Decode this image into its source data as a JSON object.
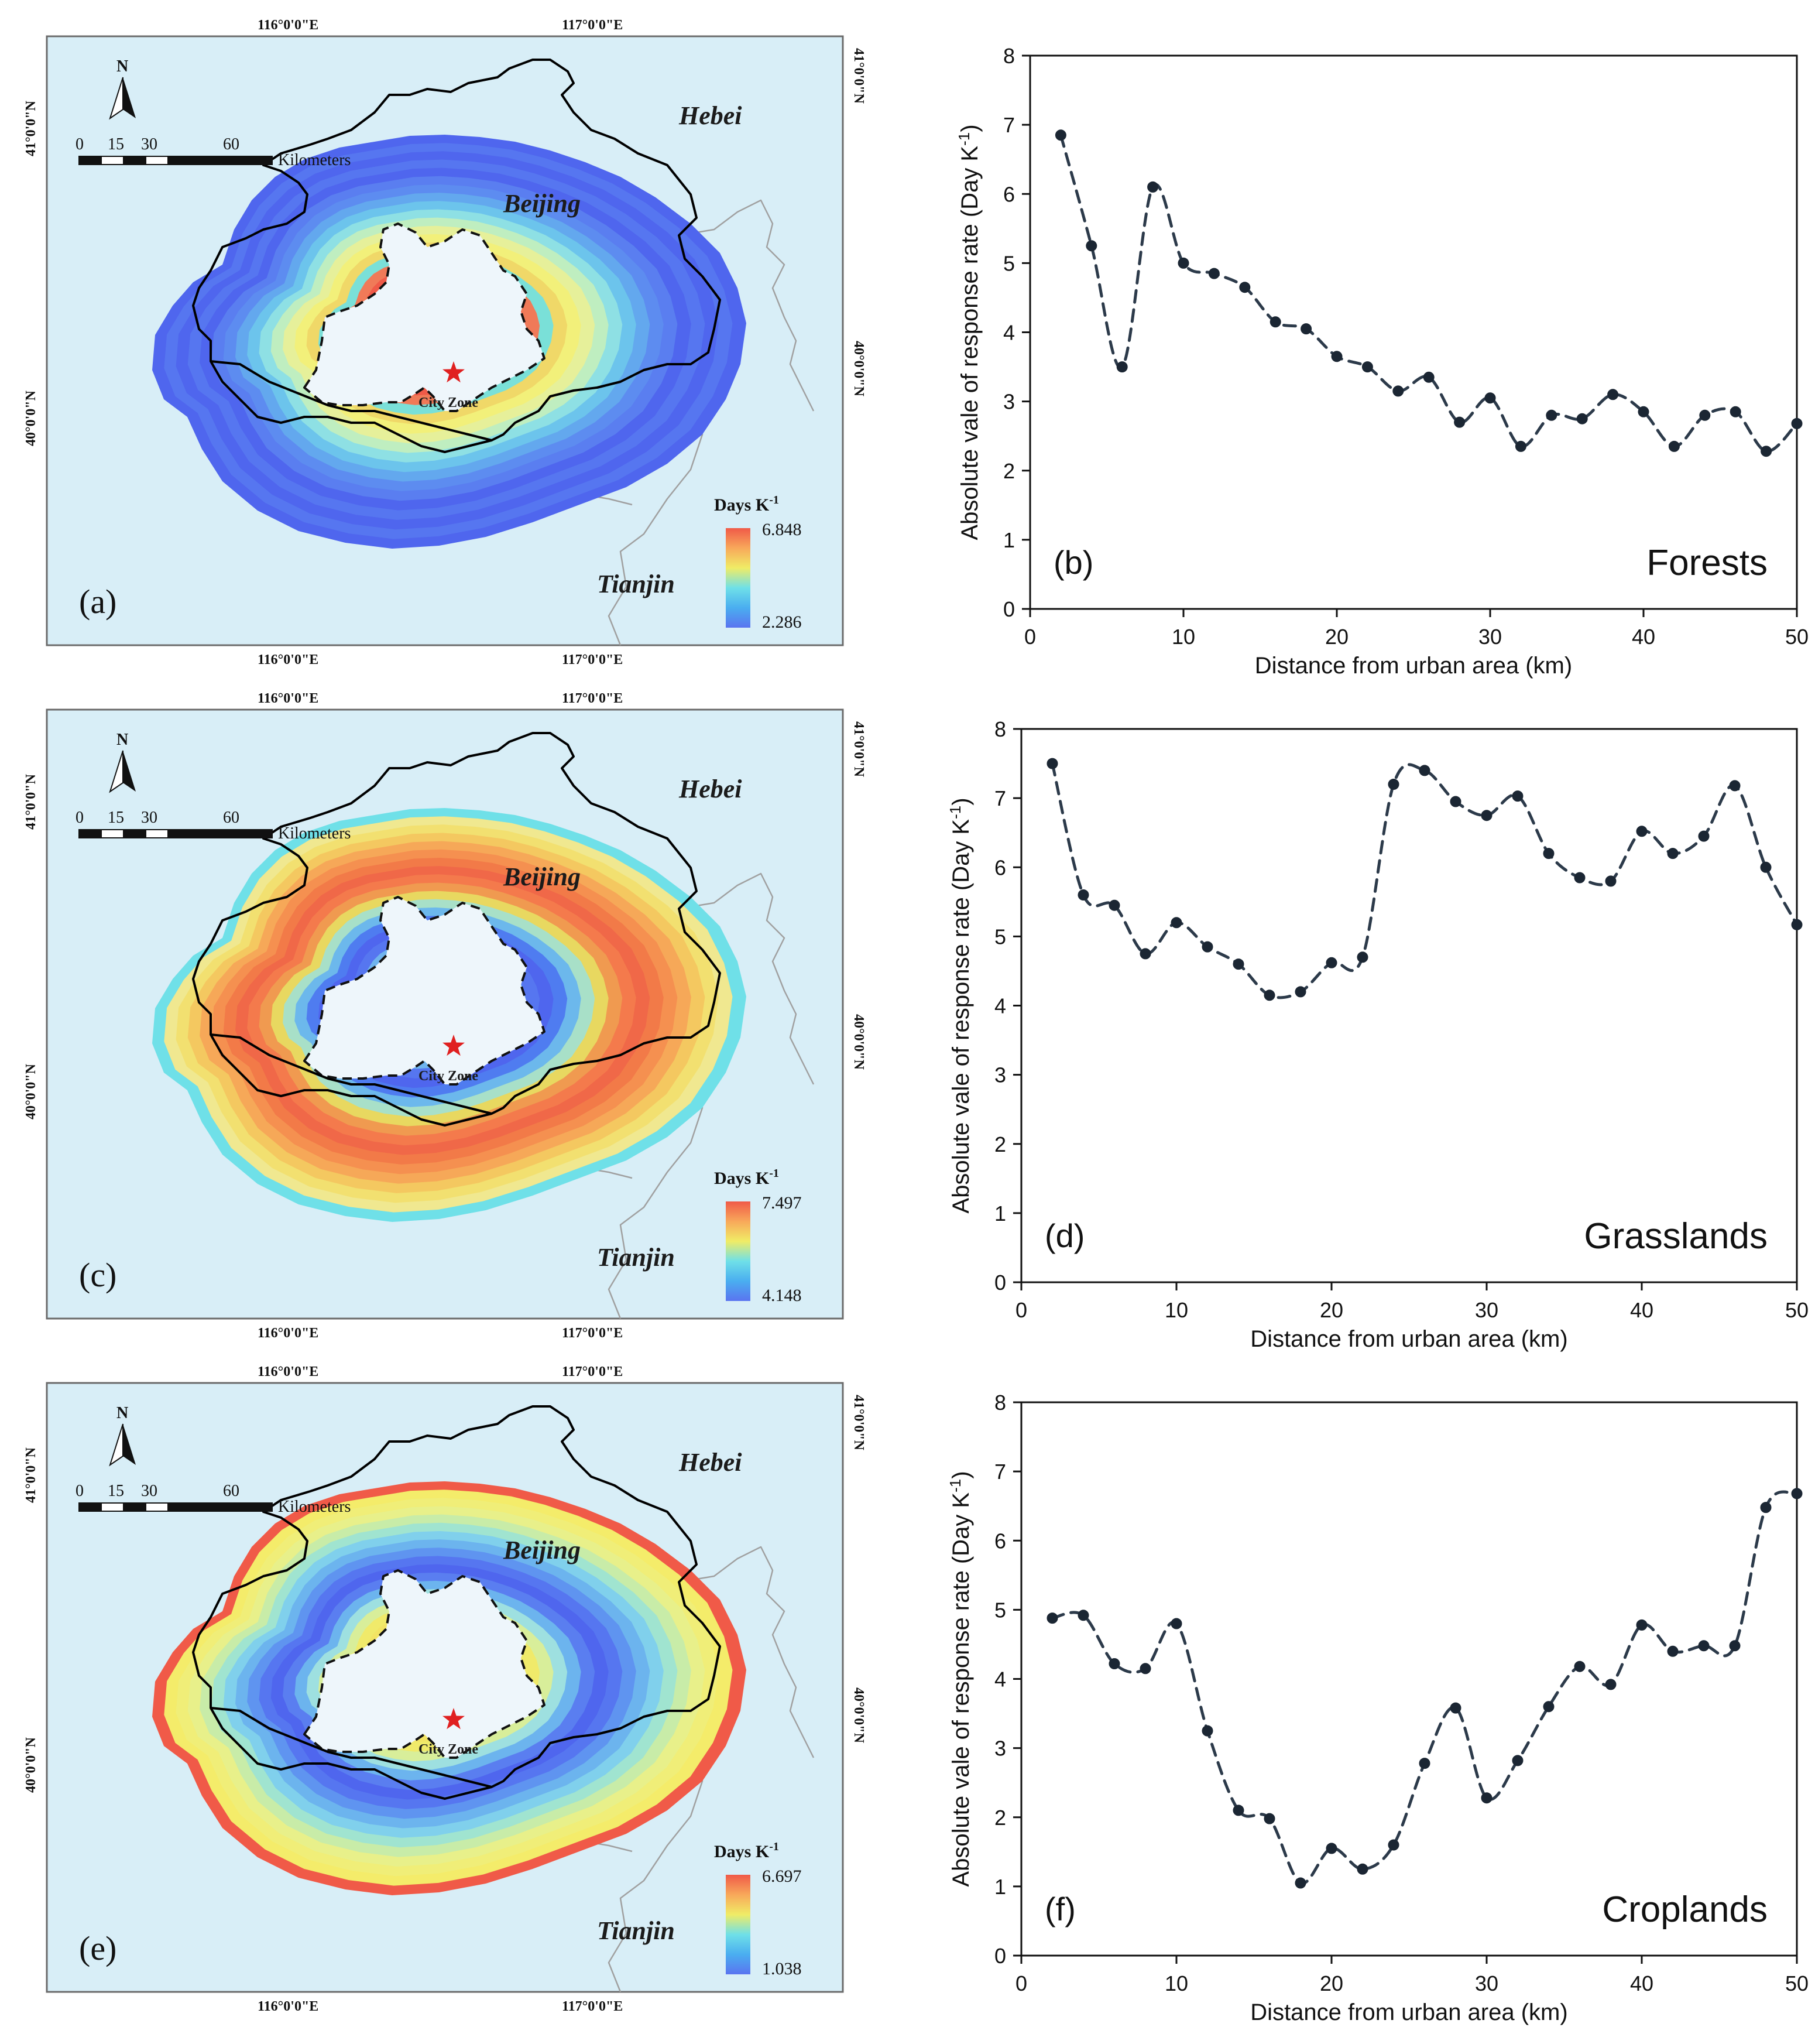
{
  "figure": {
    "maps": [
      {
        "id": "a",
        "panel_label": "(a)",
        "lon_labels": [
          "116°0'0\"E",
          "117°0'0\"E"
        ],
        "lat_labels": [
          "41°0'0\"N",
          "40°0'0\"N"
        ],
        "north_label": "N",
        "scale_labels": [
          "0",
          "15",
          "30",
          "60",
          "Kilometers"
        ],
        "provinces": {
          "hebei": "Hebei",
          "beijing": "Beijing",
          "tianjin": "Tianjin"
        },
        "city_zone": "City Zone",
        "legend_title": "Days K",
        "legend_superscript": "-1",
        "legend_max": "6.848",
        "legend_min": "2.286",
        "legend_colors": [
          "#5a74f0",
          "#4aaef0",
          "#6fe0e8",
          "#f0ec66",
          "#f8a85a",
          "#f05a48"
        ],
        "ring_colors": [
          "#4f66ee",
          "#5676f0",
          "#4f66ee",
          "#5676f0",
          "#4f66ee",
          "#5a7ef0",
          "#5d8cf0",
          "#63a8ee",
          "#6cc4ec",
          "#8ee0e4",
          "#bfeec0",
          "#e6f09a",
          "#f2f07a",
          "#f0d868",
          "#7ae0d8",
          "#f07a58",
          "#f05a48",
          "#6fe0e8",
          "#f05a48"
        ]
      },
      {
        "id": "c",
        "panel_label": "(c)",
        "lon_labels": [
          "116°0'0\"E",
          "117°0'0\"E"
        ],
        "lat_labels": [
          "41°0'0\"N",
          "40°0'0\"N"
        ],
        "north_label": "N",
        "scale_labels": [
          "0",
          "15",
          "30",
          "60",
          "Kilometers"
        ],
        "provinces": {
          "hebei": "Hebei",
          "beijing": "Beijing",
          "tianjin": "Tianjin"
        },
        "city_zone": "City Zone",
        "legend_title": "Days K",
        "legend_superscript": "-1",
        "legend_max": "7.497",
        "legend_min": "4.148",
        "legend_colors": [
          "#5a74f0",
          "#4aaef0",
          "#6fe0e8",
          "#f0ec66",
          "#f8a85a",
          "#f05a48"
        ],
        "ring_colors": [
          "#6fe0e8",
          "#f0e890",
          "#f2e070",
          "#f4c860",
          "#f6a858",
          "#f59050",
          "#f27a48",
          "#f06848",
          "#f47a4c",
          "#f09a50",
          "#e8d860",
          "#a8e0c8",
          "#6cb8ec",
          "#4f7cf0",
          "#4f66ee",
          "#5676f0",
          "#6fb4ee",
          "#8ad8e8",
          "#f05a48"
        ]
      },
      {
        "id": "e",
        "panel_label": "(e)",
        "lon_labels": [
          "116°0'0\"E",
          "117°0'0\"E"
        ],
        "lat_labels": [
          "41°0'0\"N",
          "40°0'0\"N"
        ],
        "north_label": "N",
        "scale_labels": [
          "0",
          "15",
          "30",
          "60",
          "Kilometers"
        ],
        "provinces": {
          "hebei": "Hebei",
          "beijing": "Beijing",
          "tianjin": "Tianjin"
        },
        "city_zone": "City Zone",
        "legend_title": "Days K",
        "legend_superscript": "-1",
        "legend_max": "6.697",
        "legend_min": "1.038",
        "legend_colors": [
          "#5a74f0",
          "#4aaef0",
          "#6fe0e8",
          "#f0ec66",
          "#f8a85a",
          "#f05a48"
        ],
        "ring_colors": [
          "#f05a48",
          "#f4ec6a",
          "#f0ee78",
          "#e8f08a",
          "#c8eca8",
          "#a0e4d0",
          "#80d0ec",
          "#6cb4ee",
          "#5f94f0",
          "#5676f0",
          "#4f66ee",
          "#5a7ef0",
          "#6cb4ee",
          "#9ee0e0",
          "#d8ee9a",
          "#f0ea6a",
          "#f2e464",
          "#f0ee72",
          "#f0e668"
        ]
      }
    ]
  },
  "chart_data": [
    {
      "type": "line",
      "panel": "(b)",
      "title": "Forests",
      "xlabel": "Distance from urban area (km)",
      "ylabel": "Absolute vale of response rate (Day K",
      "ylabel_sup": "-1",
      "ylabel_end": ")",
      "xlim": [
        0,
        50
      ],
      "ylim": [
        0,
        8
      ],
      "xticks": [
        0,
        10,
        20,
        30,
        40,
        50
      ],
      "yticks": [
        0,
        1,
        2,
        3,
        4,
        5,
        6,
        7,
        8
      ],
      "x": [
        2,
        4,
        6,
        8,
        10,
        12,
        14,
        16,
        18,
        20,
        22,
        24,
        26,
        28,
        30,
        32,
        34,
        36,
        38,
        40,
        42,
        44,
        46,
        48,
        50
      ],
      "y": [
        6.85,
        5.25,
        3.5,
        6.1,
        5.0,
        4.85,
        4.65,
        4.15,
        4.05,
        3.65,
        3.5,
        3.15,
        3.35,
        2.7,
        3.05,
        2.35,
        2.8,
        2.75,
        3.1,
        2.85,
        2.35,
        2.8,
        2.85,
        2.28,
        2.68
      ]
    },
    {
      "type": "line",
      "panel": "(d)",
      "title": "Grasslands",
      "xlabel": "Distance from urban area (km)",
      "ylabel": "Absolute vale of response rate (Day K",
      "ylabel_sup": "-1",
      "ylabel_end": ")",
      "xlim": [
        0,
        50
      ],
      "ylim": [
        0,
        8
      ],
      "xticks": [
        0,
        10,
        20,
        30,
        40,
        50
      ],
      "yticks": [
        0,
        1,
        2,
        3,
        4,
        5,
        6,
        7,
        8
      ],
      "x": [
        2,
        4,
        6,
        8,
        10,
        12,
        14,
        16,
        18,
        20,
        22,
        24,
        26,
        28,
        30,
        32,
        34,
        36,
        38,
        40,
        42,
        44,
        46,
        48,
        50
      ],
      "y": [
        7.5,
        5.6,
        5.45,
        4.75,
        5.2,
        4.85,
        4.6,
        4.15,
        4.2,
        4.62,
        4.7,
        7.2,
        7.4,
        6.95,
        6.75,
        7.03,
        6.2,
        5.85,
        5.8,
        6.52,
        6.2,
        6.45,
        7.18,
        6.0,
        5.17
      ]
    },
    {
      "type": "line",
      "panel": "(f)",
      "title": "Croplands",
      "xlabel": "Distance from urban area (km)",
      "ylabel": "Absolute vale of response rate (Day K",
      "ylabel_sup": "-1",
      "ylabel_end": ")",
      "xlim": [
        0,
        50
      ],
      "ylim": [
        0,
        8
      ],
      "xticks": [
        0,
        10,
        20,
        30,
        40,
        50
      ],
      "yticks": [
        0,
        1,
        2,
        3,
        4,
        5,
        6,
        7,
        8
      ],
      "x": [
        2,
        4,
        6,
        8,
        10,
        12,
        14,
        16,
        18,
        20,
        22,
        24,
        26,
        28,
        30,
        32,
        34,
        36,
        38,
        40,
        42,
        44,
        46,
        48,
        50
      ],
      "y": [
        4.88,
        4.92,
        4.22,
        4.15,
        4.8,
        3.25,
        2.1,
        1.98,
        1.05,
        1.55,
        1.25,
        1.6,
        2.78,
        3.58,
        2.28,
        2.82,
        3.6,
        4.18,
        3.92,
        4.78,
        4.4,
        4.48,
        4.48,
        6.48,
        6.68
      ]
    }
  ]
}
